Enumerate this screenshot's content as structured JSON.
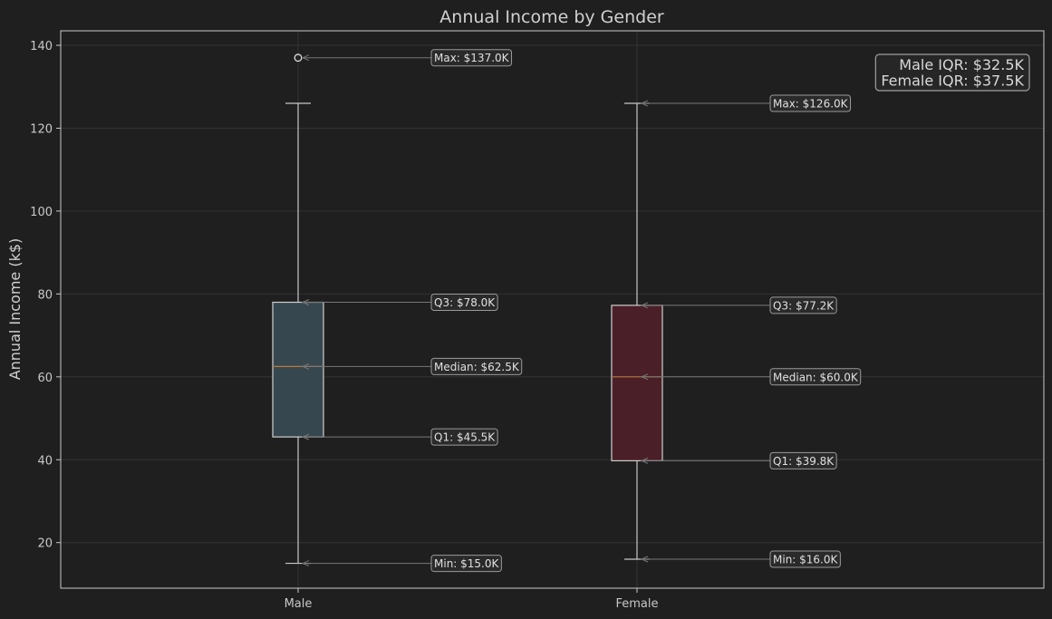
{
  "chart_data": {
    "type": "box",
    "title": "Annual Income by Gender",
    "xlabel": "",
    "ylabel": "Annual Income (k$)",
    "ylim": [
      9,
      143.5
    ],
    "yticks": [
      20,
      40,
      60,
      80,
      100,
      120,
      140
    ],
    "grid": true,
    "categories": [
      "Male",
      "Female"
    ],
    "boxes": [
      {
        "name": "Male",
        "color": "#37474f",
        "min": 15.0,
        "q1": 45.5,
        "median": 62.5,
        "q3": 78.0,
        "max": 126.0,
        "outliers": [
          137.0
        ],
        "annotations": {
          "max": "Max: $137.0K",
          "q3": "Q3: $78.0K",
          "median": "Median: $62.5K",
          "q1": "Q1: $45.5K",
          "min": "Min: $15.0K"
        }
      },
      {
        "name": "Female",
        "color": "#4a1f28",
        "min": 16.0,
        "q1": 39.75,
        "median": 60.0,
        "q3": 77.25,
        "max": 126.0,
        "outliers": [],
        "annotations": {
          "max": "Max: $126.0K",
          "q3": "Q3: $77.2K",
          "median": "Median: $60.0K",
          "q1": "Q1: $39.8K",
          "min": "Min: $16.0K"
        }
      }
    ],
    "iqr_box": {
      "lines": [
        "Male IQR: $32.5K",
        "Female IQR: $37.5K"
      ],
      "placement": "top-right"
    },
    "colors": {
      "background": "#1f1f1f",
      "axes": "#c8c8c8",
      "grid": "#333333",
      "whisker": "#c8c8c8",
      "median": "#b8793f",
      "annotation_line": "#777777",
      "annotation_border": "#9a9a9a"
    }
  }
}
